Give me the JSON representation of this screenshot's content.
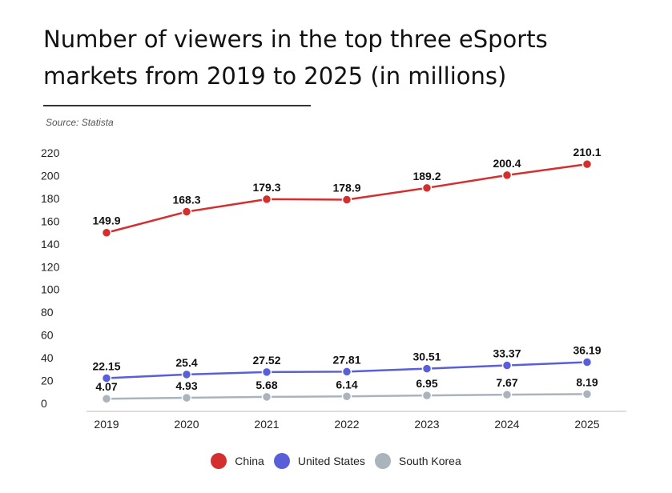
{
  "chart_data": {
    "type": "line",
    "title": "Number of viewers in the top three eSports markets from 2019 to 2025 (in millions)",
    "source": "Source: Statista",
    "xlabel": "",
    "ylabel": "",
    "categories": [
      "2019",
      "2020",
      "2021",
      "2022",
      "2023",
      "2024",
      "2025"
    ],
    "y_ticks": [
      "0",
      "20",
      "40",
      "60",
      "80",
      "100",
      "120",
      "140",
      "160",
      "180",
      "200",
      "220"
    ],
    "ylim": [
      0,
      220
    ],
    "grid": false,
    "legend_position": "bottom-center",
    "series": [
      {
        "name": "China",
        "color": "#d32f2f",
        "values": [
          149.9,
          168.3,
          179.3,
          178.9,
          189.2,
          200.4,
          210.1
        ],
        "labels": [
          "149.9",
          "168.3",
          "179.3",
          "178.9",
          "189.2",
          "200.4",
          "210.1"
        ]
      },
      {
        "name": "United States",
        "color": "#5a5ed9",
        "values": [
          22.15,
          25.4,
          27.52,
          27.81,
          30.51,
          33.37,
          36.19
        ],
        "labels": [
          "22.15",
          "25.4",
          "27.52",
          "27.81",
          "30.51",
          "33.37",
          "36.19"
        ]
      },
      {
        "name": "South Korea",
        "color": "#a9b4bd",
        "values": [
          4.07,
          4.93,
          5.68,
          6.14,
          6.95,
          7.67,
          8.19
        ],
        "labels": [
          "4.07",
          "4.93",
          "5.68",
          "6.14",
          "6.95",
          "7.67",
          "8.19"
        ]
      }
    ]
  }
}
